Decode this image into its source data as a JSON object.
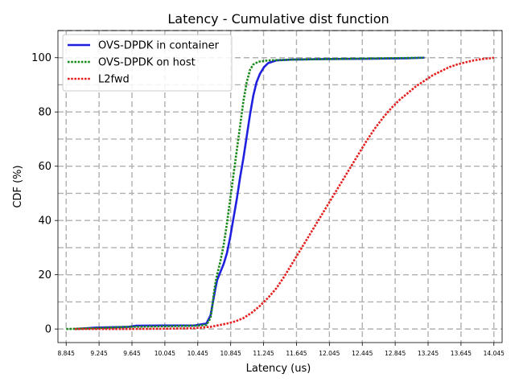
{
  "chart_data": {
    "type": "line",
    "title": "Latency - Cumulative dist function",
    "xlabel": "Latency (us)",
    "ylabel": "CDF (%)",
    "xlim": [
      8.745,
      14.145
    ],
    "ylim": [
      -5,
      110
    ],
    "xticks": [
      8.845,
      9.245,
      9.645,
      10.045,
      10.445,
      10.845,
      11.245,
      11.645,
      12.045,
      12.445,
      12.845,
      13.245,
      13.645,
      14.045
    ],
    "xtick_labels": [
      "8.845",
      "9.245",
      "9.645",
      "10.045",
      "10.445",
      "10.845",
      "11.245",
      "11.645",
      "12.045",
      "12.445",
      "12.845",
      "13.245",
      "13.645",
      "14.045"
    ],
    "yticks": [
      0,
      20,
      40,
      60,
      80,
      100
    ],
    "ytick_labels": [
      "0",
      "20",
      "40",
      "60",
      "80",
      "100"
    ],
    "grid": true,
    "legend_position": "top-left",
    "series": [
      {
        "name": "OVS-DPDK in container",
        "color": "#1f1fe0",
        "style": "solid",
        "x": [
          8.95,
          9.2,
          9.6,
          9.7,
          10.0,
          10.4,
          10.55,
          10.6,
          10.63,
          10.66,
          10.68,
          10.72,
          10.76,
          10.8,
          10.84,
          10.88,
          10.92,
          10.96,
          11.0,
          11.04,
          11.08,
          11.12,
          11.16,
          11.2,
          11.25,
          11.3,
          11.4,
          11.6,
          12.0,
          12.5,
          13.0,
          13.2
        ],
        "y": [
          0,
          0.5,
          0.8,
          1.2,
          1.3,
          1.3,
          2.0,
          5,
          10,
          15,
          18,
          21,
          24,
          28,
          34,
          41,
          48,
          56,
          63,
          71,
          79,
          86,
          91,
          94,
          96.5,
          98,
          99,
          99.3,
          99.5,
          99.6,
          99.8,
          100
        ]
      },
      {
        "name": "OVS-DPDK on host",
        "color": "#1a8a1a",
        "style": "dotted",
        "x": [
          8.845,
          9.2,
          9.6,
          10.0,
          10.4,
          10.55,
          10.6,
          10.62,
          10.64,
          10.66,
          10.68,
          10.72,
          10.76,
          10.8,
          10.84,
          10.88,
          10.92,
          10.96,
          11.0,
          11.04,
          11.08,
          11.12,
          11.18,
          11.3,
          11.6,
          12.0,
          12.5,
          13.0,
          13.2
        ],
        "y": [
          0,
          0.3,
          0.8,
          1.0,
          1.2,
          1.5,
          4,
          8,
          13,
          17,
          20,
          25,
          31,
          39,
          48,
          57,
          66,
          75,
          84,
          91,
          95.5,
          97.5,
          98.5,
          99,
          99.3,
          99.5,
          99.7,
          99.9,
          100
        ]
      },
      {
        "name": "L2fwd",
        "color": "#e62020",
        "style": "dotted",
        "x": [
          8.95,
          9.5,
          10.0,
          10.4,
          10.6,
          10.8,
          10.9,
          11.0,
          11.1,
          11.2,
          11.3,
          11.4,
          11.5,
          11.6,
          11.7,
          11.8,
          11.9,
          12.0,
          12.1,
          12.2,
          12.3,
          12.4,
          12.5,
          12.6,
          12.7,
          12.8,
          12.9,
          13.0,
          13.1,
          13.2,
          13.3,
          13.4,
          13.5,
          13.6,
          13.7,
          13.8,
          13.9,
          14.0,
          14.045
        ],
        "y": [
          0,
          0,
          0.1,
          0.3,
          0.8,
          2,
          2.8,
          4,
          6,
          8.5,
          11.5,
          15,
          19.5,
          24.5,
          29.5,
          34.5,
          39.5,
          44.5,
          49.5,
          54.5,
          59.5,
          64.5,
          69.5,
          74,
          78,
          81.5,
          84.5,
          87,
          89.5,
          91.5,
          93.5,
          95,
          96.5,
          97.5,
          98.3,
          99,
          99.5,
          99.8,
          100
        ]
      }
    ]
  }
}
